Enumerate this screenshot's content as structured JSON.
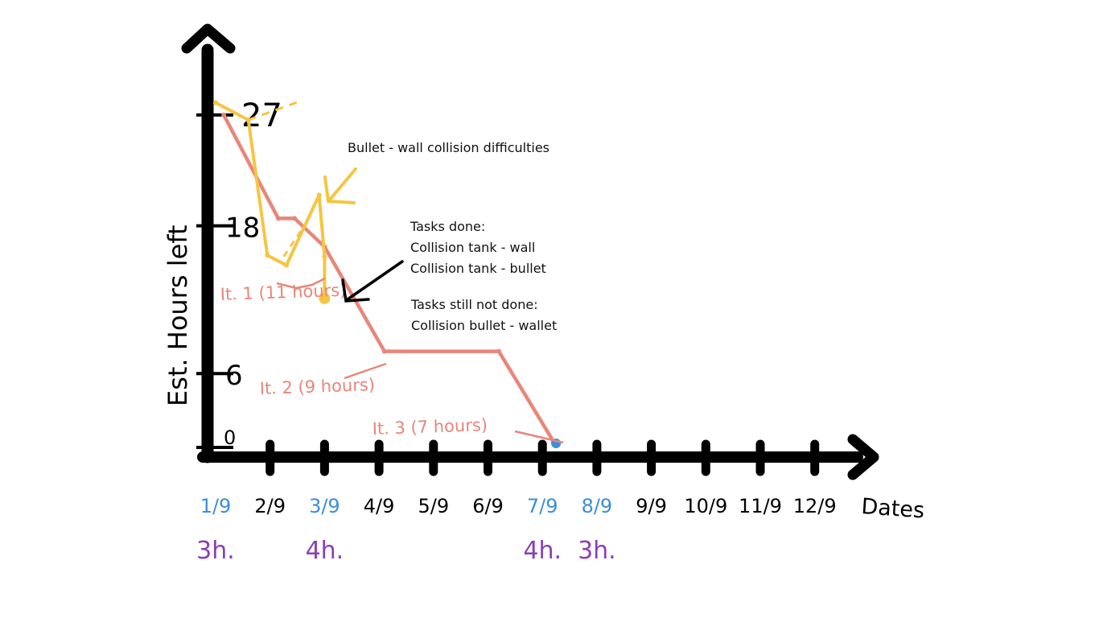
{
  "chart_data": {
    "type": "line",
    "title": "",
    "xlabel": "Dates",
    "ylabel": "Est. Hours left",
    "x_ticks": [
      "1/9",
      "2/9",
      "3/9",
      "4/9",
      "5/9",
      "6/9",
      "7/9",
      "8/9",
      "9/9",
      "10/9",
      "11/9",
      "12/9"
    ],
    "y_ticks": [
      0,
      6,
      18,
      27
    ],
    "ylim": [
      0,
      30
    ],
    "highlighted_dates": [
      "1/9",
      "3/9",
      "7/9",
      "8/9"
    ],
    "work_hours": [
      {
        "date": "1/9",
        "label": "3h."
      },
      {
        "date": "3/9",
        "label": "4h."
      },
      {
        "date": "7/9",
        "label": "4h."
      },
      {
        "date": "8/9",
        "label": "3h."
      }
    ],
    "series": [
      {
        "kind": "planned",
        "color": "#e8867a",
        "x": [
          0.15,
          1.15,
          1.45,
          2.0,
          3.1,
          5.2,
          6.2
        ],
        "y": [
          27,
          18.6,
          18.6,
          16.3,
          7.8,
          7.8,
          0.5
        ]
      },
      {
        "kind": "actual",
        "color": "#f5c542",
        "x": [
          0.0,
          0.6,
          0.95,
          1.3,
          1.9,
          2.0,
          2.0
        ],
        "y": [
          28,
          26.6,
          15.6,
          14.8,
          20.5,
          15.5,
          12.1
        ]
      }
    ],
    "iterations": [
      {
        "label": "It. 1 (11 hours)"
      },
      {
        "label": "It. 2 (9 hours)"
      },
      {
        "label": "It. 3 (7 hours)"
      }
    ],
    "annotations": {
      "bullet_note": "Bullet - wall collision difficulties",
      "tasks_done_title": "Tasks done:",
      "tasks_done": [
        "Collision tank - wall",
        "Collision tank - bullet"
      ],
      "tasks_not_done_title": "Tasks still not done:",
      "tasks_not_done": [
        "Collision bullet - wallet"
      ]
    },
    "colors": {
      "axis": "#000000",
      "planned": "#e8867a",
      "actual": "#f5c542",
      "highlight": "#3b8fd9",
      "hours": "#8a3fb8"
    }
  }
}
